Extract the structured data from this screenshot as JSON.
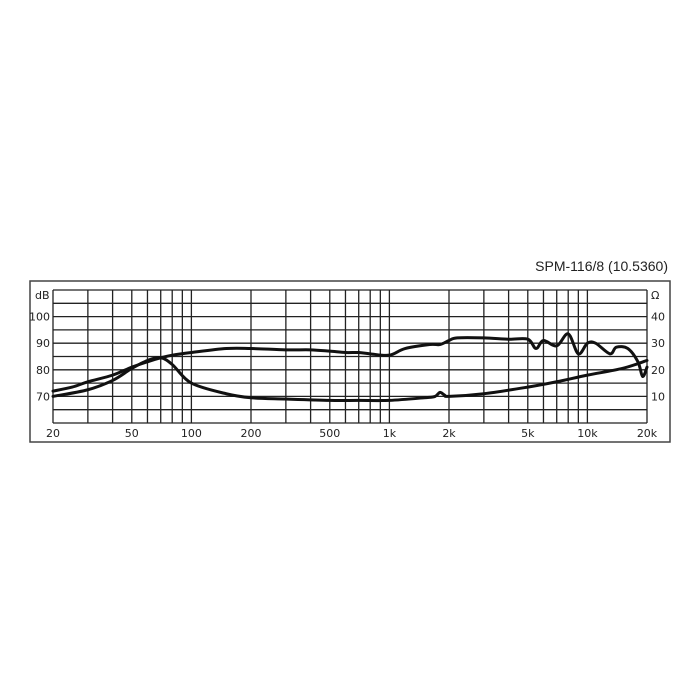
{
  "chart_data": {
    "type": "line",
    "title": "SPM-116/8 (10.5360)",
    "x_scale": "log",
    "xlim": [
      20,
      20000
    ],
    "x_ticks": [
      20,
      50,
      100,
      200,
      500,
      1000,
      2000,
      5000,
      10000,
      20000
    ],
    "x_tick_labels": [
      "20",
      "50",
      "100",
      "200",
      "500",
      "1k",
      "2k",
      "5k",
      "10k",
      "20k"
    ],
    "x_gridlines": [
      20,
      30,
      40,
      50,
      60,
      70,
      80,
      90,
      100,
      200,
      300,
      400,
      500,
      600,
      700,
      800,
      900,
      1000,
      2000,
      3000,
      4000,
      5000,
      6000,
      7000,
      8000,
      9000,
      10000,
      20000
    ],
    "y_left": {
      "label": "dB",
      "lim": [
        60,
        110
      ],
      "ticks": [
        70,
        80,
        90,
        100
      ],
      "tick_labels": [
        "70",
        "80",
        "90",
        "100"
      ]
    },
    "y_right": {
      "label": "Ω",
      "lim": [
        0,
        50
      ],
      "ticks": [
        10,
        20,
        30,
        40
      ],
      "tick_labels": [
        "10",
        "20",
        "30",
        "40"
      ]
    },
    "grid": true,
    "line_color": "#111111",
    "series": [
      {
        "axis": "left",
        "x": [
          20,
          25,
          30,
          40,
          50,
          60,
          70,
          80,
          100,
          150,
          200,
          300,
          400,
          500,
          600,
          700,
          800,
          1000,
          1200,
          1600,
          1800,
          2000,
          2200,
          3000,
          4000,
          5000,
          5500,
          6000,
          7000,
          8000,
          9000,
          10000,
          11000,
          13000,
          14000,
          16000,
          18000,
          19000,
          20000
        ],
        "y": [
          72,
          73.5,
          75.5,
          78,
          81,
          83,
          84.5,
          85.5,
          86.5,
          88,
          88,
          87.5,
          87.5,
          87,
          86.5,
          86.5,
          86,
          85.5,
          88,
          89.5,
          89.5,
          91,
          92,
          92,
          91.5,
          91.5,
          88,
          91,
          89,
          93.5,
          86,
          90,
          90,
          86,
          88.5,
          88,
          83,
          77.5,
          81
        ]
      },
      {
        "axis": "right",
        "x": [
          20,
          30,
          40,
          50,
          60,
          70,
          80,
          100,
          150,
          200,
          300,
          500,
          700,
          1000,
          1500,
          1700,
          1800,
          1900,
          2000,
          3000,
          5000,
          7000,
          10000,
          15000,
          20000
        ],
        "y": [
          10,
          12.5,
          16,
          20.5,
          23.5,
          24.5,
          22,
          15,
          11,
          9.5,
          9,
          8.5,
          8.5,
          8.5,
          9.5,
          10,
          11.5,
          10.5,
          10,
          11,
          13.5,
          15.5,
          18,
          20.5,
          23.5
        ]
      }
    ]
  }
}
